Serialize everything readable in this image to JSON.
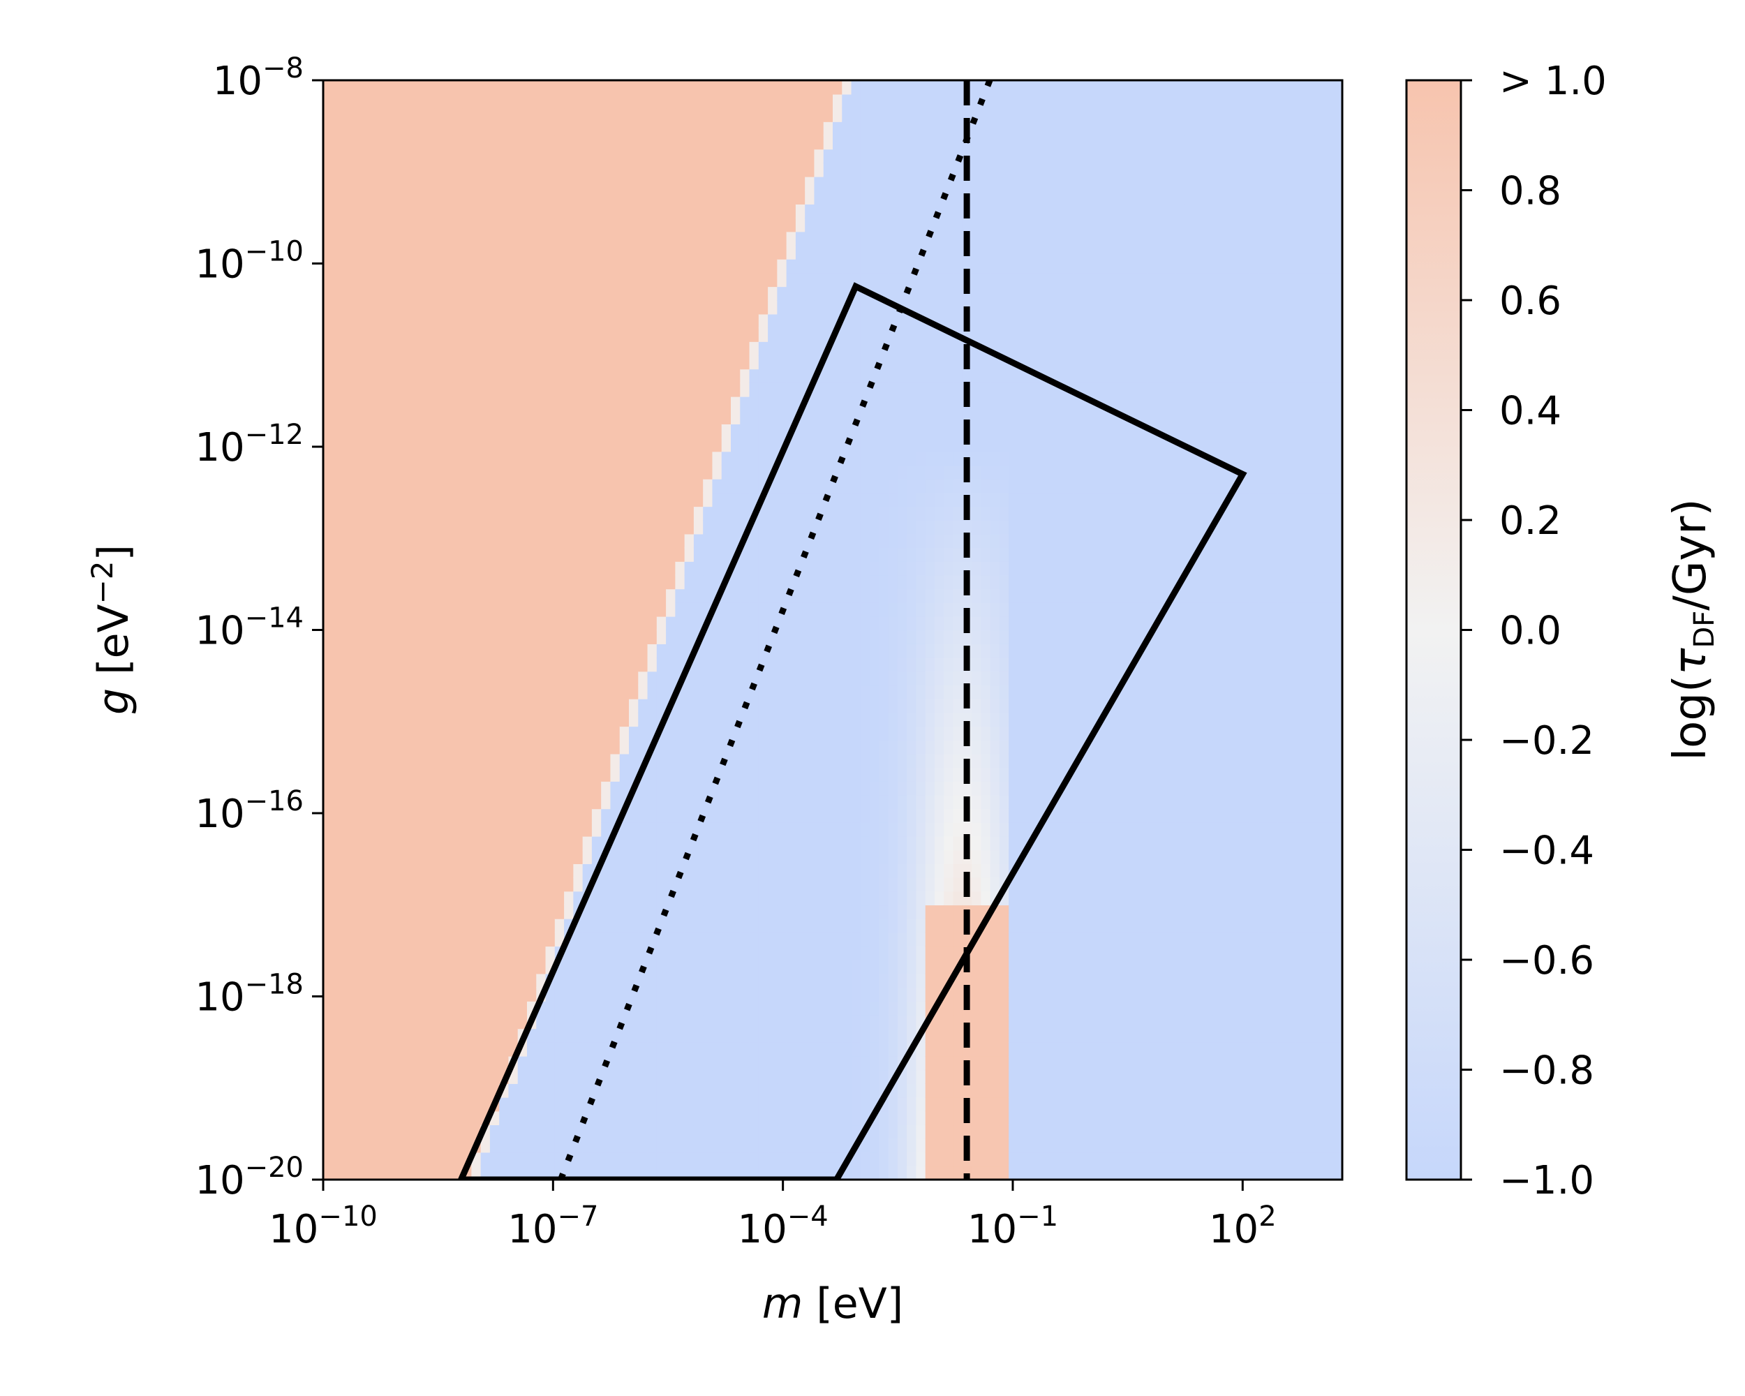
{
  "chart_data": {
    "type": "heatmap",
    "title": "",
    "x": {
      "label_var": "m",
      "label_unit": " [eV]",
      "scale": "log10",
      "range_log10": [
        -10,
        3.3
      ],
      "ticks": [
        {
          "base": "10",
          "exp": "−10",
          "log10": -10
        },
        {
          "base": "10",
          "exp": "−7",
          "log10": -7
        },
        {
          "base": "10",
          "exp": "−4",
          "log10": -4
        },
        {
          "base": "10",
          "exp": "−1",
          "log10": -1
        },
        {
          "base": "10",
          "exp": "2",
          "log10": 2
        }
      ]
    },
    "y": {
      "label_var": "g",
      "label_unit_pre": " [eV",
      "label_unit_exp": "−2",
      "label_unit_post": "]",
      "scale": "log10",
      "range_log10": [
        -20,
        -8
      ],
      "ticks": [
        {
          "base": "10",
          "exp": "−20",
          "log10": -20
        },
        {
          "base": "10",
          "exp": "−18",
          "log10": -18
        },
        {
          "base": "10",
          "exp": "−16",
          "log10": -16
        },
        {
          "base": "10",
          "exp": "−14",
          "log10": -14
        },
        {
          "base": "10",
          "exp": "−12",
          "log10": -12
        },
        {
          "base": "10",
          "exp": "−10",
          "log10": -10
        },
        {
          "base": "10",
          "exp": "−8",
          "log10": -8
        }
      ]
    },
    "colorbar": {
      "label_prefix": "log(",
      "label_tau": "τ",
      "label_sub": "DF",
      "label_suffix": "/Gyr)",
      "cmap": "coolwarm",
      "range": [
        -1.0,
        1.0
      ],
      "color_low": "#c6d7fb",
      "color_mid": "#f2f2f2",
      "color_high": "#f7c4ae",
      "ticks": [
        {
          "label": "> 1.0",
          "value": 1.0
        },
        {
          "label": "0.8",
          "value": 0.8
        },
        {
          "label": "0.6",
          "value": 0.6
        },
        {
          "label": "0.4",
          "value": 0.4
        },
        {
          "label": "0.2",
          "value": 0.2
        },
        {
          "label": "0.0",
          "value": 0.0
        },
        {
          "label": "−0.2",
          "value": -0.2
        },
        {
          "label": "−0.4",
          "value": -0.4
        },
        {
          "label": "−0.6",
          "value": -0.6
        },
        {
          "label": "−0.8",
          "value": -0.8
        },
        {
          "label": "−1.0",
          "value": -1.0
        }
      ]
    },
    "regions": {
      "high_region_boundary": {
        "description_points_log10": [
          [
            -8.1,
            -20
          ],
          [
            -3.2,
            -8
          ]
        ]
      },
      "feature_band_center_log10_m": -1.65,
      "feature_cutoff_log10_m": -1.0
    },
    "overlays": {
      "solid_polygon": {
        "points_log10": [
          [
            -8.2,
            -20
          ],
          [
            -3.05,
            -10.25
          ],
          [
            2.0,
            -12.3
          ],
          [
            -3.3,
            -20
          ]
        ]
      },
      "dotted_line": {
        "points_log10": [
          [
            -6.9,
            -20
          ],
          [
            -1.3,
            -8
          ]
        ]
      },
      "dashed_vertical": {
        "log10_m": -1.6
      }
    }
  }
}
